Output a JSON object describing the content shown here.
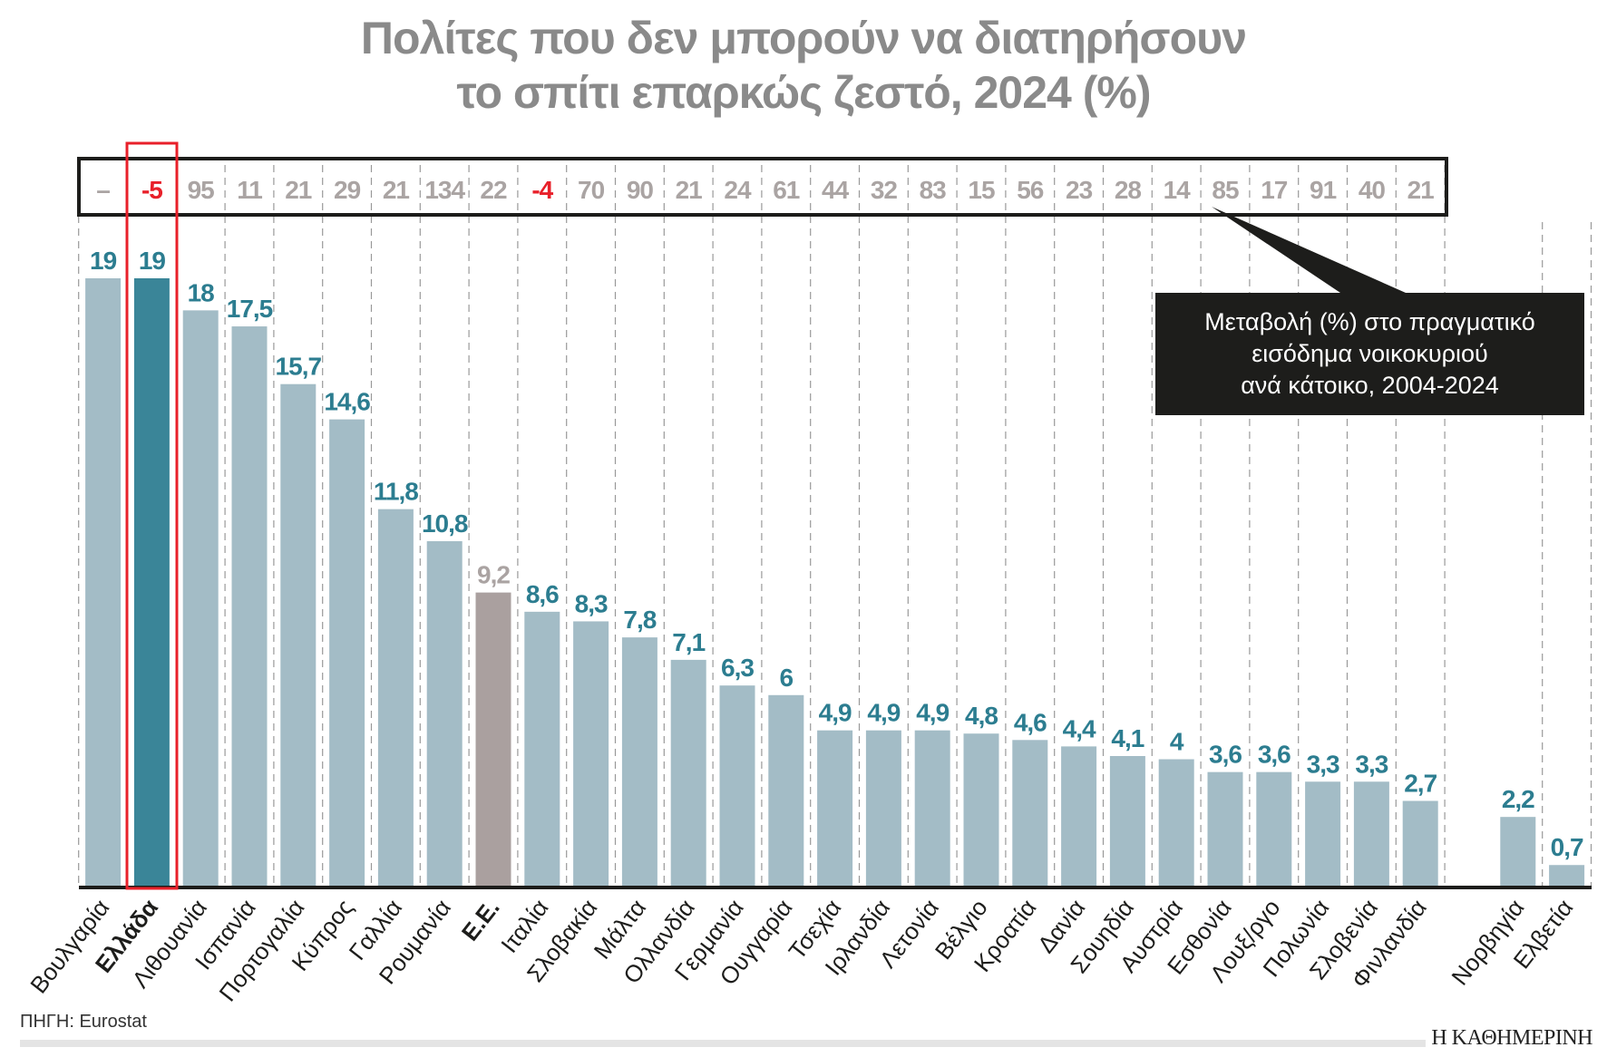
{
  "chart_data": {
    "type": "bar",
    "title_lines": [
      "Πολίτες που δεν μπορούν να διατηρήσουν",
      "το σπίτι επαρκώς ζεστό, 2024 (%)"
    ],
    "categories": [
      "Βουλγαρία",
      "Ελλάδα",
      "Λιθουανία",
      "Ισπανία",
      "Πορτογαλία",
      "Κύπρος",
      "Γαλλία",
      "Ρουμανία",
      "Ε.Ε.",
      "Ιταλία",
      "Σλοβακία",
      "Μάλτα",
      "Ολλανδία",
      "Γερμανία",
      "Ουγγαρία",
      "Τσεχία",
      "Ιρλανδία",
      "Λετονία",
      "Βέλγιο",
      "Κροατία",
      "Δανία",
      "Σουηδία",
      "Αυστρία",
      "Εσθονία",
      "Λουξ/ργο",
      "Πολωνία",
      "Σλοβενία",
      "Φινλανδία",
      "Νορβηγία",
      "Ελβετία"
    ],
    "values": [
      19,
      19,
      18,
      17.5,
      15.7,
      14.6,
      11.8,
      10.8,
      9.2,
      8.6,
      8.3,
      7.8,
      7.1,
      6.3,
      6,
      4.9,
      4.9,
      4.9,
      4.8,
      4.6,
      4.4,
      4.1,
      4,
      3.6,
      3.6,
      3.3,
      3.3,
      2.7,
      2.2,
      0.7
    ],
    "value_labels": [
      "19",
      "19",
      "18",
      "17,5",
      "15,7",
      "14,6",
      "11,8",
      "10,8",
      "9,2",
      "8,6",
      "8,3",
      "7,8",
      "7,1",
      "6,3",
      "6",
      "4,9",
      "4,9",
      "4,9",
      "4,8",
      "4,6",
      "4,4",
      "4,1",
      "4",
      "3,6",
      "3,6",
      "3,3",
      "3,3",
      "2,7",
      "2,2",
      "0,7"
    ],
    "income_change_labels": [
      "–",
      "-5",
      "95",
      "11",
      "21",
      "29",
      "21",
      "134",
      "22",
      "-4",
      "70",
      "90",
      "21",
      "24",
      "61",
      "44",
      "32",
      "83",
      "15",
      "56",
      "23",
      "28",
      "14",
      "85",
      "17",
      "91",
      "40",
      "21"
    ],
    "highlight": {
      "country": "Ελλάδα",
      "aggregate": "Ε.Ε."
    },
    "callout_lines": [
      "Μεταβολή (%) στο πραγματικό",
      "εισόδημα νοικοκυριού",
      "ανά κάτοικο, 2004-2024"
    ],
    "ylim": [
      0,
      19
    ],
    "grid": "vertical dashed",
    "colors": {
      "bar": "#a3bcc6",
      "greece": "#3a8598",
      "eu": "#aaa09f",
      "value_label": "#2c7d90",
      "eu_label": "#aaa3a2",
      "change_label": "#aaa4a3",
      "negative": "#e8202a",
      "highlight_box": "#e8202a"
    }
  },
  "footer": {
    "source": "ΠΗΓΗ: Eurostat",
    "brand": "Η ΚΑΘΗΜΕΡΙΝΗ"
  }
}
